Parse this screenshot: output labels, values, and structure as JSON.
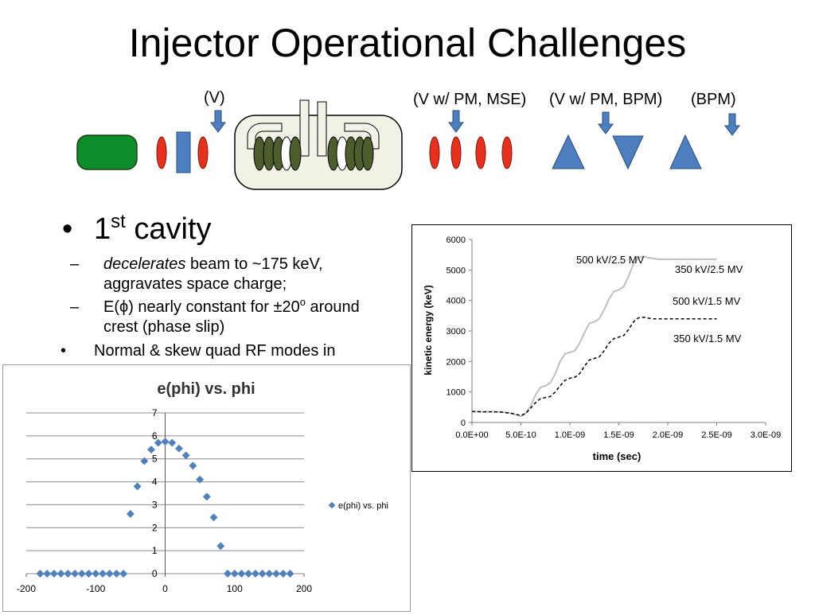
{
  "slide": {
    "title": "Injector Operational Challenges",
    "diagram_labels": [
      "(V)",
      "(V w/ PM, MSE)",
      "(V w/ PM, BPM)",
      "(BPM)"
    ],
    "bullet1": {
      "main": "1",
      "sup": "st",
      "rest": " cavity"
    },
    "sub1": {
      "italic": "decelerates",
      "text": " beam to ~175 keV, aggravates space charge;"
    },
    "sub2": {
      "pre": "E(",
      "phi": "ϕ",
      "post": ") nearly constant for ±20",
      "sup": "o",
      "tail": " around crest (phase slip)"
    },
    "bullet2": "Normal & skew quad RF modes in"
  },
  "colors": {
    "gun_green": "#0b8e2a",
    "lens_red": "#e8301c",
    "element_blue": "#4d7ebf",
    "cavity_fill": "#f3f2e6",
    "coil_green": "#4d5e2c",
    "scatter_blue": "#4f81bd"
  },
  "chart_data": [
    {
      "type": "line",
      "title": "",
      "xlabel": "time (sec)",
      "ylabel": "kinetic energy (keV)",
      "xlim": [
        0,
        3e-09
      ],
      "ylim": [
        0,
        6000
      ],
      "x_ticks": [
        "0.0E+00",
        "5.0E-10",
        "1.0E-09",
        "1.5E-09",
        "2.0E-09",
        "2.5E-09",
        "3.0E-09"
      ],
      "y_ticks": [
        "0",
        "1000",
        "2000",
        "3000",
        "4000",
        "5000",
        "6000"
      ],
      "annotations": [
        "500 kV/2.5 MV",
        "350 kV/2.5 MV",
        "500 kV/1.5 MV",
        "350 kV/1.5 MV"
      ],
      "series": [
        {
          "name": "500 kV/2.5 MV",
          "style": "solid",
          "color": "#bfbfbf",
          "x": [
            0,
            1e-10,
            2e-10,
            3e-10,
            4e-10,
            5e-10,
            5.5e-10,
            6e-10,
            6.5e-10,
            7e-10,
            7.5e-10,
            8e-10,
            8.5e-10,
            9e-10,
            9.5e-10,
            1e-09,
            1.05e-09,
            1.1e-09,
            1.15e-09,
            1.2e-09,
            1.25e-09,
            1.3e-09,
            1.35e-09,
            1.4e-09,
            1.45e-09,
            1.5e-09,
            1.55e-09,
            1.6e-09,
            1.65e-09,
            1.7e-09,
            1.75e-09,
            1.8e-09,
            1.85e-09,
            1.9e-09,
            1.95e-09,
            2e-09,
            2.05e-09,
            2.1e-09,
            2.15e-09,
            2.2e-09,
            2.3e-09,
            2.4e-09,
            2.5e-09
          ],
          "y": [
            360,
            350,
            355,
            350,
            300,
            200,
            300,
            550,
            900,
            1150,
            1200,
            1300,
            1600,
            2000,
            2250,
            2300,
            2350,
            2600,
            2950,
            3250,
            3300,
            3400,
            3700,
            4050,
            4300,
            4350,
            4450,
            4800,
            5200,
            5400,
            5450,
            5400,
            5380,
            5350,
            5350,
            5350,
            5350,
            5350,
            5350,
            5350,
            5350,
            5350,
            5350
          ]
        },
        {
          "name": "350 kV/1.5 MV",
          "style": "dashed",
          "color": "#000000",
          "x": [
            0,
            1e-10,
            2e-10,
            3e-10,
            4e-10,
            5e-10,
            5.5e-10,
            6e-10,
            6.5e-10,
            7e-10,
            7.5e-10,
            8e-10,
            8.5e-10,
            9e-10,
            9.5e-10,
            1e-09,
            1.05e-09,
            1.1e-09,
            1.15e-09,
            1.2e-09,
            1.25e-09,
            1.3e-09,
            1.35e-09,
            1.4e-09,
            1.45e-09,
            1.5e-09,
            1.55e-09,
            1.6e-09,
            1.65e-09,
            1.7e-09,
            1.75e-09,
            1.8e-09,
            1.85e-09,
            1.9e-09,
            1.95e-09,
            2e-09,
            2.05e-09,
            2.1e-09,
            2.15e-09,
            2.2e-09,
            2.3e-09,
            2.4e-09,
            2.5e-09
          ],
          "y": [
            360,
            350,
            350,
            340,
            300,
            230,
            300,
            470,
            650,
            780,
            820,
            850,
            1000,
            1200,
            1380,
            1450,
            1480,
            1600,
            1850,
            2050,
            2100,
            2150,
            2350,
            2600,
            2750,
            2800,
            2850,
            3050,
            3300,
            3430,
            3450,
            3420,
            3400,
            3400,
            3400,
            3400,
            3400,
            3400,
            3400,
            3400,
            3400,
            3400,
            3400
          ]
        }
      ]
    },
    {
      "type": "scatter",
      "title": "e(phi) vs. phi",
      "xlabel": "",
      "ylabel": "",
      "xlim": [
        -200,
        200
      ],
      "ylim": [
        0,
        7
      ],
      "x_ticks": [
        "-200",
        "-100",
        "0",
        "100",
        "200"
      ],
      "y_ticks": [
        "0",
        "1",
        "2",
        "3",
        "4",
        "5",
        "6",
        "7"
      ],
      "legend": "right",
      "series": [
        {
          "name": "e(phi) vs. phi",
          "x": [
            -180,
            -170,
            -160,
            -150,
            -140,
            -130,
            -120,
            -110,
            -100,
            -90,
            -80,
            -70,
            -60,
            -50,
            -40,
            -30,
            -20,
            -10,
            0,
            10,
            20,
            30,
            40,
            50,
            60,
            70,
            80,
            90,
            100,
            110,
            120,
            130,
            140,
            150,
            160,
            170,
            180
          ],
          "y": [
            0,
            0,
            0,
            0,
            0,
            0,
            0,
            0,
            0,
            0,
            0,
            0,
            0,
            2.6,
            3.8,
            4.9,
            5.4,
            5.7,
            5.75,
            5.7,
            5.45,
            5.15,
            4.7,
            4.1,
            3.35,
            2.45,
            1.2,
            0,
            0,
            0,
            0,
            0,
            0,
            0,
            0,
            0,
            0
          ]
        }
      ]
    }
  ]
}
